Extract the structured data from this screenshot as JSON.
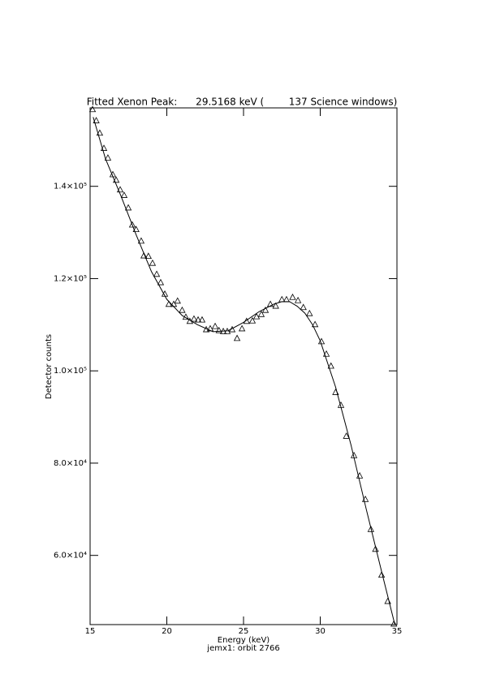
{
  "chart_data": {
    "type": "scatter",
    "title": "Fitted Xenon Peak:      29.5168 keV (        137 Science windows)",
    "xlabel": "Energy (keV)",
    "subtitle": "jemx1: orbit 2766",
    "ylabel": "Detector counts",
    "xlim": [
      15,
      35
    ],
    "xticks": [
      15,
      20,
      25,
      30,
      35
    ],
    "ylim": [
      45000,
      157000
    ],
    "yticks": [
      {
        "value": 60000,
        "label": "6.0×10⁴"
      },
      {
        "value": 80000,
        "label": "8.0×10⁴"
      },
      {
        "value": 100000,
        "label": "1.0×10⁵"
      },
      {
        "value": 120000,
        "label": "1.2×10⁵"
      },
      {
        "value": 140000,
        "label": "1.4×10⁵"
      }
    ],
    "series": [
      {
        "type": "scatter",
        "marker": "triangle",
        "color": "#000000",
        "x": [
          15.16,
          15.4,
          15.63,
          15.9,
          16.16,
          16.48,
          16.7,
          16.96,
          17.22,
          17.49,
          17.75,
          18.0,
          18.33,
          18.5,
          18.8,
          19.07,
          19.34,
          19.6,
          19.87,
          20.13,
          20.45,
          20.7,
          21.0,
          21.24,
          21.5,
          21.77,
          22.04,
          22.3,
          22.57,
          22.83,
          23.15,
          23.4,
          23.68,
          23.94,
          24.26,
          24.58,
          24.9,
          25.2,
          25.58,
          25.85,
          26.16,
          26.43,
          26.75,
          27.1,
          27.5,
          27.8,
          28.2,
          28.55,
          28.9,
          29.3,
          29.66,
          30.08,
          30.4,
          30.7,
          31.0,
          31.35,
          31.7,
          32.2,
          32.57,
          32.94,
          33.3,
          33.6,
          34.0,
          34.4,
          34.8
        ],
        "values": [
          156600,
          154200,
          151500,
          148200,
          146100,
          142500,
          141300,
          139200,
          138000,
          135300,
          131600,
          130600,
          128100,
          124900,
          124800,
          123300,
          120900,
          119100,
          116600,
          114400,
          114400,
          115100,
          113100,
          111600,
          110700,
          111200,
          111000,
          111000,
          108900,
          109100,
          109600,
          108700,
          108500,
          108500,
          108900,
          107000,
          109100,
          110700,
          110800,
          111700,
          112200,
          113100,
          114400,
          114000,
          115400,
          115400,
          115900,
          115200,
          113700,
          112400,
          110000,
          106300,
          103600,
          101000,
          95300,
          92500,
          85800,
          81600,
          77200,
          72100,
          65600,
          61300,
          55700,
          50000,
          45100
        ]
      },
      {
        "type": "line",
        "color": "#000000",
        "x": [
          15.2,
          16,
          17,
          18,
          19,
          20,
          21,
          22,
          23,
          24,
          25,
          26,
          27,
          27.5,
          28,
          28.5,
          29,
          29.5,
          30,
          31,
          32,
          33,
          34,
          34.9
        ],
        "values": [
          155000,
          146000,
          138000,
          129500,
          121500,
          115500,
          112000,
          110000,
          108500,
          108700,
          110500,
          112800,
          114500,
          115000,
          115000,
          114000,
          112500,
          110000,
          106500,
          96500,
          84000,
          70000,
          56500,
          44500
        ]
      }
    ]
  }
}
